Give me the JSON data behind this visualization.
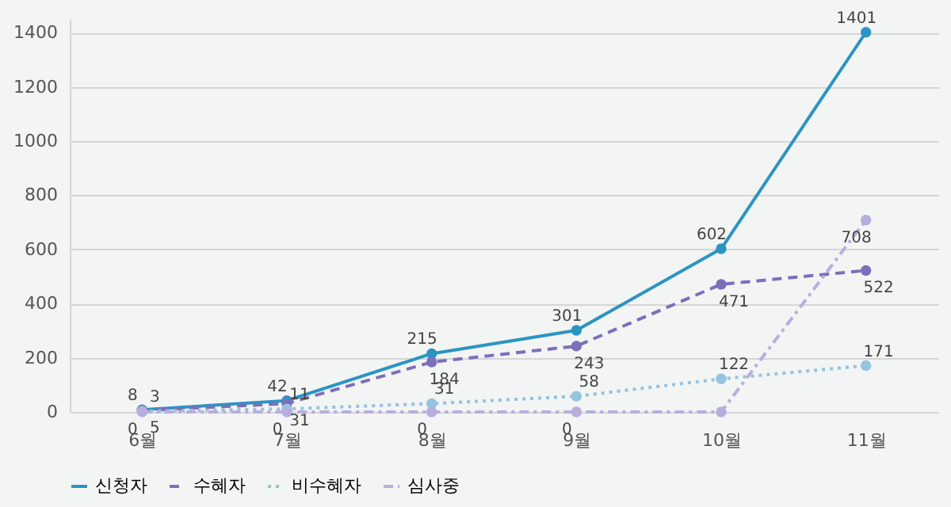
{
  "chart_data": {
    "type": "line",
    "categories": [
      "6월",
      "7월",
      "8월",
      "9월",
      "10월",
      "11월"
    ],
    "series": [
      {
        "name": "신청자",
        "color": "#2b94c3",
        "line_style": "solid",
        "values": [
          8,
          42,
          215,
          301,
          602,
          1401
        ],
        "value_labels": [
          "8",
          "42",
          "215",
          "301",
          "602",
          "1401"
        ]
      },
      {
        "name": "수혜자",
        "color": "#7b6fbb",
        "line_style": "dashed",
        "values": [
          5,
          31,
          184,
          243,
          471,
          522
        ],
        "value_labels": [
          "5",
          "31",
          "184",
          "243",
          "471",
          "522"
        ]
      },
      {
        "name": "비수혜자",
        "color": "#93c4e0",
        "line_style": "dotted",
        "values": [
          3,
          11,
          31,
          58,
          122,
          171
        ],
        "value_labels": [
          "3",
          "11",
          "31",
          "58",
          "122",
          "171"
        ]
      },
      {
        "name": "심사중",
        "color": "#b8aedd",
        "line_style": "dashdot",
        "values": [
          0,
          0,
          0,
          0,
          0,
          708
        ],
        "value_labels": [
          "0",
          "0",
          "0",
          "0",
          null,
          "708"
        ]
      }
    ],
    "ylim": [
      0,
      1450
    ],
    "yticks": [
      0,
      200,
      400,
      600,
      800,
      1000,
      1200,
      1400
    ],
    "grid": "y",
    "legend": "bottom",
    "marker": "circle"
  }
}
